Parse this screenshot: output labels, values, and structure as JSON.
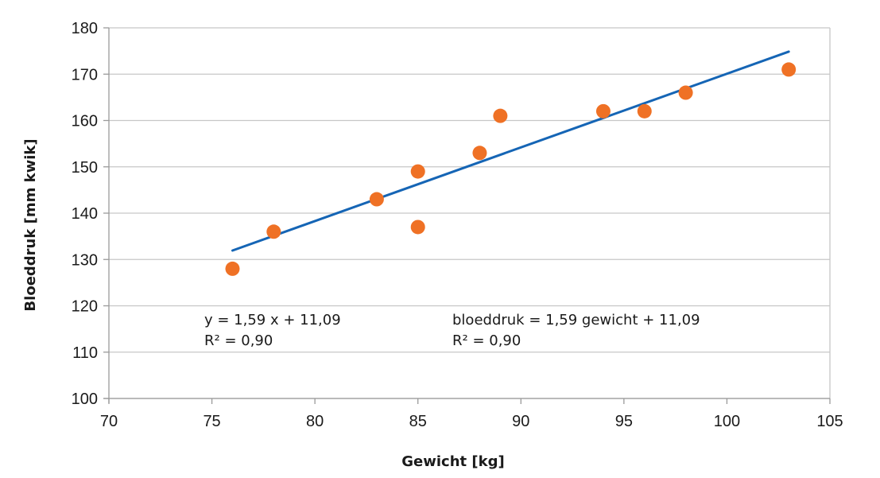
{
  "chart_data": {
    "type": "scatter",
    "title": "",
    "xlabel": "Gewicht [kg]",
    "ylabel": "Bloeddruk [mm kwik]",
    "xlim": [
      70,
      105
    ],
    "ylim": [
      100,
      180
    ],
    "xticks": [
      70,
      75,
      80,
      85,
      90,
      95,
      100,
      105
    ],
    "yticks": [
      100,
      110,
      120,
      130,
      140,
      150,
      160,
      170,
      180
    ],
    "grid": "horizontal",
    "series": [
      {
        "points": [
          {
            "x": 76,
            "y": 128
          },
          {
            "x": 78,
            "y": 136
          },
          {
            "x": 83,
            "y": 143
          },
          {
            "x": 85,
            "y": 149
          },
          {
            "x": 85,
            "y": 137
          },
          {
            "x": 88,
            "y": 153
          },
          {
            "x": 89,
            "y": 161
          },
          {
            "x": 94,
            "y": 162
          },
          {
            "x": 96,
            "y": 162
          },
          {
            "x": 98,
            "y": 166
          },
          {
            "x": 103,
            "y": 171
          }
        ]
      }
    ],
    "trendline": {
      "slope": 1.59,
      "intercept": 11.09,
      "x_range": [
        76,
        103
      ]
    },
    "annotations": {
      "eq1_line1": "y = 1,59 x + 11,09",
      "eq1_line2": "R² = 0,90",
      "eq2_line1": "bloeddruk = 1,59 gewicht + 11,09",
      "eq2_line2": "R² = 0,90"
    },
    "colors": {
      "points": "#ef7125",
      "trendline": "#1565b5",
      "grid": "#c7c7c7",
      "axis": "#9a9a9a"
    }
  }
}
